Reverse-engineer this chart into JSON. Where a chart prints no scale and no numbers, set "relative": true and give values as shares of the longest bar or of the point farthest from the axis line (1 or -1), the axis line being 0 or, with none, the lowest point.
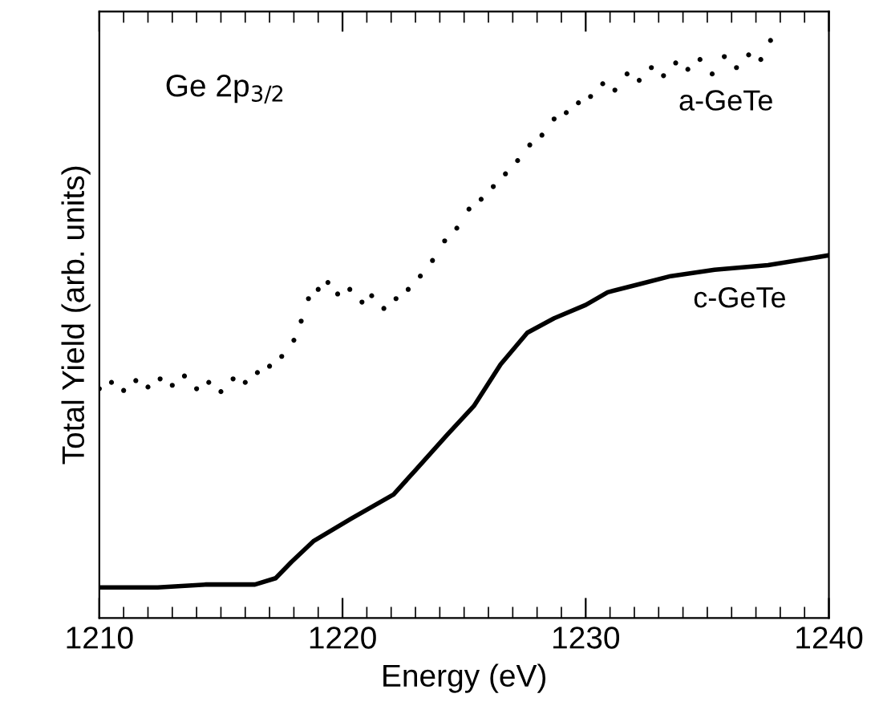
{
  "chart_data": {
    "type": "line",
    "relative": true,
    "xlabel": "Energy (eV)",
    "ylabel": "Total Yield (arb. units)",
    "annotations": [
      "Ge 2p$_{3/2}$"
    ],
    "xlim": [
      1210,
      1240
    ],
    "xticks": [
      1210,
      {
        "value": 1211,
        "label": null
      },
      {
        "value": 1212,
        "label": null
      },
      {
        "value": 1213,
        "label": null
      },
      {
        "value": 1214,
        "label": null
      },
      {
        "value": 1215,
        "label": null
      },
      {
        "value": 1216,
        "label": null
      },
      {
        "value": 1217,
        "label": null
      },
      {
        "value": 1218,
        "label": null
      },
      {
        "value": 1219,
        "label": null
      },
      1220,
      {
        "value": 1221,
        "label": null
      },
      {
        "value": 1222,
        "label": null
      },
      {
        "value": 1223,
        "label": null
      },
      {
        "value": 1224,
        "label": null
      },
      {
        "value": 1225,
        "label": null
      },
      {
        "value": 1226,
        "label": null
      },
      {
        "value": 1227,
        "label": null
      },
      {
        "value": 1228,
        "label": null
      },
      {
        "value": 1229,
        "label": null
      },
      1230,
      {
        "value": 1231,
        "label": null
      },
      {
        "value": 1232,
        "label": null
      },
      {
        "value": 1233,
        "label": null
      },
      {
        "value": 1234,
        "label": null
      },
      {
        "value": 1235,
        "label": null
      },
      {
        "value": 1236,
        "label": null
      },
      {
        "value": 1237,
        "label": null
      },
      {
        "value": 1238,
        "label": null
      },
      {
        "value": 1239,
        "label": null
      },
      1240
    ],
    "grid": false,
    "legend": false,
    "series": [
      {
        "name": "a-GeTe",
        "type": "scatter",
        "marker": "circle",
        "color": "#000000",
        "x": [
          1210.0,
          1210.5,
          1211.0,
          1211.5,
          1212.0,
          1212.5,
          1213.0,
          1213.5,
          1214.0,
          1214.5,
          1215.0,
          1215.5,
          1216.0,
          1216.5,
          1217.0,
          1217.5,
          1218.0,
          1218.3,
          1218.6,
          1219.0,
          1219.4,
          1219.8,
          1220.3,
          1220.8,
          1221.2,
          1221.7,
          1222.2,
          1222.7,
          1223.2,
          1223.7,
          1224.2,
          1224.7,
          1225.2,
          1225.7,
          1226.2,
          1226.7,
          1227.2,
          1227.7,
          1228.2,
          1228.7,
          1229.2,
          1229.7,
          1230.2,
          1230.7,
          1231.2,
          1231.7,
          1232.2,
          1232.7,
          1233.2,
          1233.7,
          1234.2,
          1234.7,
          1235.2,
          1235.7,
          1236.2,
          1236.7,
          1237.2,
          1237.6
        ],
        "values": [
          0.397,
          0.408,
          0.394,
          0.411,
          0.4,
          0.414,
          0.403,
          0.419,
          0.397,
          0.408,
          0.392,
          0.414,
          0.408,
          0.425,
          0.436,
          0.453,
          0.481,
          0.514,
          0.553,
          0.569,
          0.581,
          0.561,
          0.569,
          0.547,
          0.558,
          0.536,
          0.553,
          0.569,
          0.592,
          0.619,
          0.653,
          0.675,
          0.708,
          0.725,
          0.747,
          0.769,
          0.792,
          0.819,
          0.836,
          0.864,
          0.875,
          0.892,
          0.903,
          0.925,
          0.914,
          0.942,
          0.931,
          0.953,
          0.939,
          0.961,
          0.95,
          0.967,
          0.942,
          0.972,
          0.953,
          0.975,
          0.967,
          1.0
        ]
      },
      {
        "name": "c-GeTe",
        "line_style": "solid",
        "color": "#000000",
        "x": [
          1210.0,
          1212.4,
          1214.4,
          1216.4,
          1217.25,
          1217.9,
          1218.8,
          1220.35,
          1222.1,
          1223.0,
          1224.3,
          1225.4,
          1226.5,
          1227.6,
          1228.7,
          1230.0,
          1230.9,
          1232.2,
          1233.5,
          1235.3,
          1237.5,
          1240.0
        ],
        "values": [
          0.053,
          0.053,
          0.058,
          0.058,
          0.069,
          0.097,
          0.133,
          0.172,
          0.214,
          0.256,
          0.317,
          0.367,
          0.439,
          0.494,
          0.519,
          0.542,
          0.564,
          0.578,
          0.592,
          0.603,
          0.611,
          0.628
        ]
      }
    ]
  }
}
